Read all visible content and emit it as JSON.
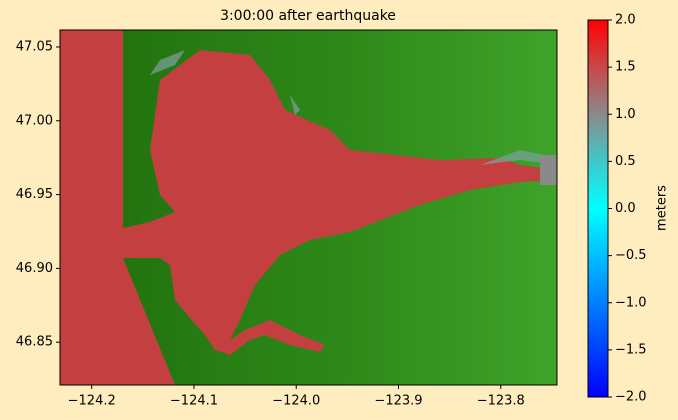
{
  "chart_data": {
    "type": "image",
    "title": "3:00:00 after earthquake",
    "xlim": [
      -124.231,
      -123.745
    ],
    "ylim": [
      46.821,
      47.0615
    ],
    "xticks": [
      {
        "value": -124.2,
        "label": "−124.2"
      },
      {
        "value": -124.1,
        "label": "−124.1"
      },
      {
        "value": -124.0,
        "label": "−124.0"
      },
      {
        "value": -123.9,
        "label": "−123.9"
      },
      {
        "value": -123.8,
        "label": "−123.8"
      }
    ],
    "yticks": [
      {
        "value": 47.05,
        "label": "47.05"
      },
      {
        "value": 47.0,
        "label": "47.00"
      },
      {
        "value": 46.95,
        "label": "46.95"
      },
      {
        "value": 46.9,
        "label": "46.90"
      },
      {
        "value": 46.85,
        "label": "46.85"
      }
    ],
    "colorbar": {
      "label": "meters",
      "clim": [
        -2,
        2
      ],
      "ticks": [
        {
          "value": 2,
          "label": "2.0"
        },
        {
          "value": 1.5,
          "label": "1.5"
        },
        {
          "value": 1,
          "label": "1.0"
        },
        {
          "value": 0.5,
          "label": "0.5"
        },
        {
          "value": 0,
          "label": "0.0"
        },
        {
          "value": -0.5,
          "label": "−0.5"
        },
        {
          "value": -1,
          "label": "−1.0"
        },
        {
          "value": -1.5,
          "label": "−1.5"
        },
        {
          "value": -2,
          "label": "−2.0"
        }
      ]
    }
  }
}
